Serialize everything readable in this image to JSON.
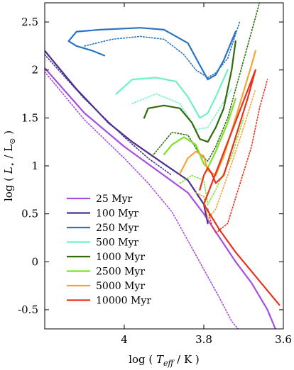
{
  "chart_data": {
    "type": "line",
    "xlabel_parts": [
      "log ( ",
      "T",
      "eff",
      " / K )"
    ],
    "ylabel_parts": [
      "log ( ",
      "L",
      "⋆",
      " / L",
      "⊙",
      " )"
    ],
    "xlim": [
      4.2,
      3.6
    ],
    "ylim": [
      -0.7,
      2.7
    ],
    "x_ticks": [
      {
        "value": 4.0,
        "label": "4"
      },
      {
        "value": 3.8,
        "label": "3.8"
      },
      {
        "value": 3.6,
        "label": "3.6"
      }
    ],
    "y_ticks": [
      {
        "value": 2.5,
        "label": "2.5"
      },
      {
        "value": 2.0,
        "label": "2"
      },
      {
        "value": 1.5,
        "label": "1.5"
      },
      {
        "value": 1.0,
        "label": "1"
      },
      {
        "value": 0.5,
        "label": "0.5"
      },
      {
        "value": 0.0,
        "label": "0"
      },
      {
        "value": -0.5,
        "label": "-0.5"
      }
    ],
    "grid": false,
    "legend_position": "bottom-left",
    "series": [
      {
        "name": "25 Myr",
        "color": "#a64ee0",
        "solid": [
          [
            4.2,
            2.02
          ],
          [
            4.1,
            1.55
          ],
          [
            4.0,
            1.2
          ],
          [
            3.9,
            0.9
          ],
          [
            3.84,
            0.72
          ],
          [
            3.8,
            0.5
          ],
          [
            3.76,
            0.25
          ],
          [
            3.72,
            0.0
          ],
          [
            3.68,
            -0.22
          ],
          [
            3.64,
            -0.5
          ],
          [
            3.62,
            -0.7
          ]
        ],
        "dotted": [
          [
            4.2,
            1.98
          ],
          [
            4.1,
            1.48
          ],
          [
            4.0,
            1.08
          ],
          [
            3.94,
            0.82
          ],
          [
            3.88,
            0.52
          ],
          [
            3.84,
            0.22
          ],
          [
            3.8,
            -0.08
          ],
          [
            3.76,
            -0.38
          ],
          [
            3.73,
            -0.62
          ],
          [
            3.71,
            -0.72
          ]
        ]
      },
      {
        "name": "100 Myr",
        "color": "#4a2f91",
        "solid": [
          [
            4.2,
            2.2
          ],
          [
            4.12,
            1.8
          ],
          [
            4.04,
            1.45
          ],
          [
            3.98,
            1.25
          ],
          [
            3.9,
            1.02
          ],
          [
            3.84,
            0.85
          ],
          [
            3.8,
            0.6
          ],
          [
            3.79,
            0.4
          ]
        ],
        "dotted": [
          [
            4.2,
            2.16
          ],
          [
            4.1,
            1.7
          ],
          [
            4.0,
            1.3
          ],
          [
            3.94,
            1.08
          ],
          [
            3.88,
            0.9
          ]
        ]
      },
      {
        "name": "250 Myr",
        "color": "#2a73c2",
        "solid": [
          [
            4.05,
            2.15
          ],
          [
            4.08,
            2.2
          ],
          [
            4.12,
            2.25
          ],
          [
            4.14,
            2.3
          ],
          [
            4.12,
            2.4
          ],
          [
            4.06,
            2.42
          ],
          [
            3.96,
            2.44
          ],
          [
            3.9,
            2.42
          ],
          [
            3.84,
            2.28
          ],
          [
            3.81,
            2.05
          ],
          [
            3.79,
            1.9
          ],
          [
            3.77,
            1.95
          ],
          [
            3.75,
            2.1
          ],
          [
            3.72,
            2.4
          ]
        ],
        "dotted": [
          [
            4.1,
            2.25
          ],
          [
            4.03,
            2.32
          ],
          [
            3.96,
            2.35
          ],
          [
            3.9,
            2.32
          ],
          [
            3.85,
            2.16
          ],
          [
            3.82,
            2.0
          ],
          [
            3.79,
            1.92
          ],
          [
            3.77,
            1.97
          ],
          [
            3.74,
            2.12
          ],
          [
            3.71,
            2.5
          ]
        ]
      },
      {
        "name": "500 Myr",
        "color": "#6ff0c8",
        "solid": [
          [
            4.02,
            1.75
          ],
          [
            3.98,
            1.9
          ],
          [
            3.92,
            1.92
          ],
          [
            3.87,
            1.88
          ],
          [
            3.84,
            1.72
          ],
          [
            3.81,
            1.5
          ],
          [
            3.79,
            1.55
          ],
          [
            3.77,
            1.72
          ],
          [
            3.74,
            2.0
          ]
        ],
        "dotted": [
          [
            3.98,
            1.65
          ],
          [
            3.92,
            1.75
          ],
          [
            3.86,
            1.65
          ],
          [
            3.82,
            1.38
          ],
          [
            3.79,
            1.4
          ],
          [
            3.76,
            1.6
          ],
          [
            3.73,
            1.8
          ]
        ]
      },
      {
        "name": "1000 Myr",
        "color": "#2f6b0f",
        "solid": [
          [
            3.95,
            1.5
          ],
          [
            3.94,
            1.6
          ],
          [
            3.9,
            1.63
          ],
          [
            3.86,
            1.6
          ],
          [
            3.83,
            1.45
          ],
          [
            3.81,
            1.28
          ],
          [
            3.79,
            1.25
          ],
          [
            3.77,
            1.4
          ],
          [
            3.75,
            1.6
          ],
          [
            3.73,
            2.0
          ],
          [
            3.72,
            2.3
          ]
        ],
        "dotted": [
          [
            3.93,
            1.1
          ],
          [
            3.88,
            1.35
          ],
          [
            3.84,
            1.32
          ],
          [
            3.81,
            1.12
          ],
          [
            3.79,
            1.05
          ],
          [
            3.77,
            1.2
          ],
          [
            3.74,
            1.5
          ],
          [
            3.7,
            2.1
          ],
          [
            3.66,
            2.7
          ]
        ]
      },
      {
        "name": "2500 Myr",
        "color": "#7ee02b",
        "solid": [
          [
            3.9,
            1.12
          ],
          [
            3.88,
            1.22
          ],
          [
            3.85,
            1.3
          ],
          [
            3.82,
            1.22
          ],
          [
            3.8,
            1.02
          ],
          [
            3.79,
            0.98
          ],
          [
            3.77,
            1.15
          ],
          [
            3.74,
            1.45
          ],
          [
            3.72,
            1.7
          ]
        ],
        "dotted": [
          [
            3.86,
            0.82
          ],
          [
            3.83,
            0.9
          ],
          [
            3.8,
            0.85
          ],
          [
            3.79,
            0.6
          ],
          [
            3.77,
            0.75
          ],
          [
            3.73,
            1.1
          ],
          [
            3.7,
            1.5
          ]
        ]
      },
      {
        "name": "5000 Myr",
        "color": "#f5a534",
        "solid": [
          [
            3.86,
            0.92
          ],
          [
            3.84,
            1.08
          ],
          [
            3.82,
            1.15
          ],
          [
            3.8,
            1.1
          ],
          [
            3.79,
            0.95
          ],
          [
            3.77,
            0.9
          ],
          [
            3.75,
            1.1
          ],
          [
            3.72,
            1.5
          ],
          [
            3.68,
            2.05
          ],
          [
            3.67,
            2.2
          ]
        ],
        "dotted": [
          [
            3.82,
            0.72
          ],
          [
            3.8,
            0.68
          ],
          [
            3.79,
            0.45
          ],
          [
            3.77,
            0.55
          ],
          [
            3.74,
            0.9
          ],
          [
            3.7,
            1.4
          ],
          [
            3.67,
            1.8
          ]
        ]
      },
      {
        "name": "10000 Myr",
        "color": "#e8321e",
        "solid": [
          [
            3.81,
            0.75
          ],
          [
            3.8,
            0.9
          ],
          [
            3.79,
            0.98
          ],
          [
            3.78,
            0.92
          ],
          [
            3.77,
            0.82
          ],
          [
            3.75,
            0.9
          ],
          [
            3.72,
            1.3
          ],
          [
            3.69,
            1.7
          ],
          [
            3.67,
            2.0
          ],
          [
            3.8,
            0.6
          ],
          [
            3.76,
            0.33
          ],
          [
            3.72,
            0.1
          ],
          [
            3.68,
            -0.1
          ],
          [
            3.64,
            -0.3
          ],
          [
            3.61,
            -0.45
          ]
        ],
        "dotted": [
          [
            3.79,
            0.55
          ],
          [
            3.78,
            0.38
          ],
          [
            3.77,
            0.3
          ],
          [
            3.74,
            0.4
          ],
          [
            3.71,
            0.8
          ],
          [
            3.68,
            1.2
          ],
          [
            3.66,
            1.6
          ],
          [
            3.64,
            1.9
          ]
        ]
      }
    ]
  }
}
